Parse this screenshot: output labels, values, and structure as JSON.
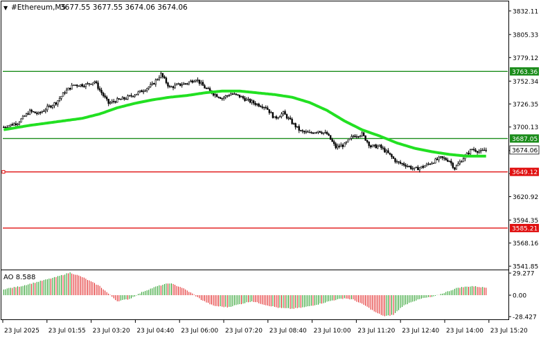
{
  "header": {
    "arrow_glyph": "▼",
    "symbol": "#Ethereum,M5",
    "ohlc": "3677.55 3677.55 3674.06 3674.06"
  },
  "price_axis": {
    "ticks": [
      {
        "value": 3832.11,
        "label": "3832.11"
      },
      {
        "value": 3805.33,
        "label": "3805.33"
      },
      {
        "value": 3779.12,
        "label": "3779.12"
      },
      {
        "value": 3752.34,
        "label": "3752.34"
      },
      {
        "value": 3726.35,
        "label": "3726.35"
      },
      {
        "value": 3700.13,
        "label": "3700.13"
      },
      {
        "value": 3673.35,
        "label": "3673.35"
      },
      {
        "value": 3647.14,
        "label": "3647.14"
      },
      {
        "value": 3620.92,
        "label": "3620.92"
      },
      {
        "value": 3594.35,
        "label": "3594.35"
      },
      {
        "value": 3568.16,
        "label": "3568.16"
      },
      {
        "value": 3541.85,
        "label": "3541.85"
      }
    ],
    "range": [
      3538,
      3843
    ]
  },
  "levels": [
    {
      "name": "resistance-3763",
      "value": 3763.36,
      "label": "3763.36",
      "color": "#1a8c1a"
    },
    {
      "name": "support-3687",
      "value": 3687.05,
      "label": "3687.05",
      "color": "#1a8c1a"
    },
    {
      "name": "support-3649",
      "value": 3649.12,
      "label": "3649.12",
      "color": "#e01010"
    },
    {
      "name": "support-3585",
      "value": 3585.21,
      "label": "3585.21",
      "color": "#e01010"
    }
  ],
  "current_price": {
    "value": 3674.06,
    "label": "3674.06"
  },
  "moving_average": {
    "color": "#22e022",
    "points": [
      [
        0,
        3697
      ],
      [
        15,
        3702
      ],
      [
        30,
        3706
      ],
      [
        45,
        3710
      ],
      [
        55,
        3715
      ],
      [
        65,
        3722
      ],
      [
        75,
        3727
      ],
      [
        85,
        3731
      ],
      [
        95,
        3734
      ],
      [
        105,
        3736
      ],
      [
        115,
        3739
      ],
      [
        125,
        3741
      ],
      [
        135,
        3741
      ],
      [
        145,
        3739
      ],
      [
        155,
        3737
      ],
      [
        165,
        3734
      ],
      [
        175,
        3728
      ],
      [
        185,
        3719
      ],
      [
        195,
        3707
      ],
      [
        205,
        3697
      ],
      [
        215,
        3690
      ],
      [
        225,
        3682
      ],
      [
        235,
        3676
      ],
      [
        245,
        3672
      ],
      [
        255,
        3669
      ],
      [
        265,
        3667
      ],
      [
        275,
        3667
      ]
    ]
  },
  "price_path": [
    [
      0,
      3700
    ],
    [
      8,
      3705
    ],
    [
      15,
      3718
    ],
    [
      20,
      3715
    ],
    [
      25,
      3722
    ],
    [
      30,
      3728
    ],
    [
      35,
      3740
    ],
    [
      40,
      3748
    ],
    [
      47,
      3748
    ],
    [
      52,
      3752
    ],
    [
      55,
      3742
    ],
    [
      60,
      3727
    ],
    [
      64,
      3730
    ],
    [
      70,
      3733
    ],
    [
      78,
      3740
    ],
    [
      85,
      3748
    ],
    [
      90,
      3760
    ],
    [
      95,
      3745
    ],
    [
      100,
      3748
    ],
    [
      105,
      3750
    ],
    [
      110,
      3755
    ],
    [
      115,
      3745
    ],
    [
      120,
      3738
    ],
    [
      125,
      3733
    ],
    [
      130,
      3738
    ],
    [
      135,
      3735
    ],
    [
      140,
      3730
    ],
    [
      145,
      3726
    ],
    [
      150,
      3723
    ],
    [
      155,
      3710
    ],
    [
      160,
      3716
    ],
    [
      165,
      3705
    ],
    [
      170,
      3695
    ],
    [
      175,
      3693
    ],
    [
      180,
      3696
    ],
    [
      185,
      3692
    ],
    [
      190,
      3677
    ],
    [
      195,
      3680
    ],
    [
      200,
      3690
    ],
    [
      205,
      3692
    ],
    [
      210,
      3678
    ],
    [
      215,
      3678
    ],
    [
      220,
      3670
    ],
    [
      225,
      3660
    ],
    [
      230,
      3657
    ],
    [
      235,
      3652
    ],
    [
      240,
      3655
    ],
    [
      245,
      3660
    ],
    [
      250,
      3665
    ],
    [
      255,
      3662
    ],
    [
      258,
      3653
    ],
    [
      263,
      3665
    ],
    [
      268,
      3675
    ],
    [
      273,
      3672
    ],
    [
      276,
      3674
    ]
  ],
  "time_axis": {
    "labels": [
      "23 Jul 2025",
      "23 Jul 01:55",
      "23 Jul 03:20",
      "23 Jul 04:40",
      "23 Jul 06:00",
      "23 Jul 07:20",
      "23 Jul 08:40",
      "23 Jul 10:00",
      "23 Jul 11:20",
      "23 Jul 12:40",
      "23 Jul 14:00",
      "23 Jul 15:20"
    ]
  },
  "ao_panel": {
    "label": "AO 8.588",
    "ticks": [
      {
        "value": 29.277,
        "label": "29.277"
      },
      {
        "value": 0,
        "label": "0.00"
      },
      {
        "value": -28.427,
        "label": "-28.427"
      }
    ],
    "range": [
      -32,
      33
    ],
    "up_color": "#1f9a1f",
    "down_color": "#e01818",
    "profile": [
      [
        0,
        8
      ],
      [
        10,
        12
      ],
      [
        20,
        18
      ],
      [
        30,
        24
      ],
      [
        38,
        30
      ],
      [
        45,
        24
      ],
      [
        55,
        12
      ],
      [
        60,
        2
      ],
      [
        65,
        -8
      ],
      [
        72,
        -5
      ],
      [
        80,
        5
      ],
      [
        88,
        12
      ],
      [
        95,
        16
      ],
      [
        102,
        10
      ],
      [
        108,
        2
      ],
      [
        113,
        -6
      ],
      [
        120,
        -14
      ],
      [
        128,
        -16
      ],
      [
        135,
        -12
      ],
      [
        142,
        -8
      ],
      [
        150,
        -13
      ],
      [
        158,
        -17
      ],
      [
        165,
        -18
      ],
      [
        172,
        -16
      ],
      [
        180,
        -12
      ],
      [
        188,
        -7
      ],
      [
        195,
        -4
      ],
      [
        200,
        -6
      ],
      [
        207,
        -14
      ],
      [
        213,
        -23
      ],
      [
        218,
        -28
      ],
      [
        223,
        -26
      ],
      [
        228,
        -15
      ],
      [
        233,
        -9
      ],
      [
        240,
        -4
      ],
      [
        246,
        -2
      ],
      [
        253,
        4
      ],
      [
        260,
        10
      ],
      [
        268,
        12
      ],
      [
        276,
        10
      ]
    ]
  }
}
